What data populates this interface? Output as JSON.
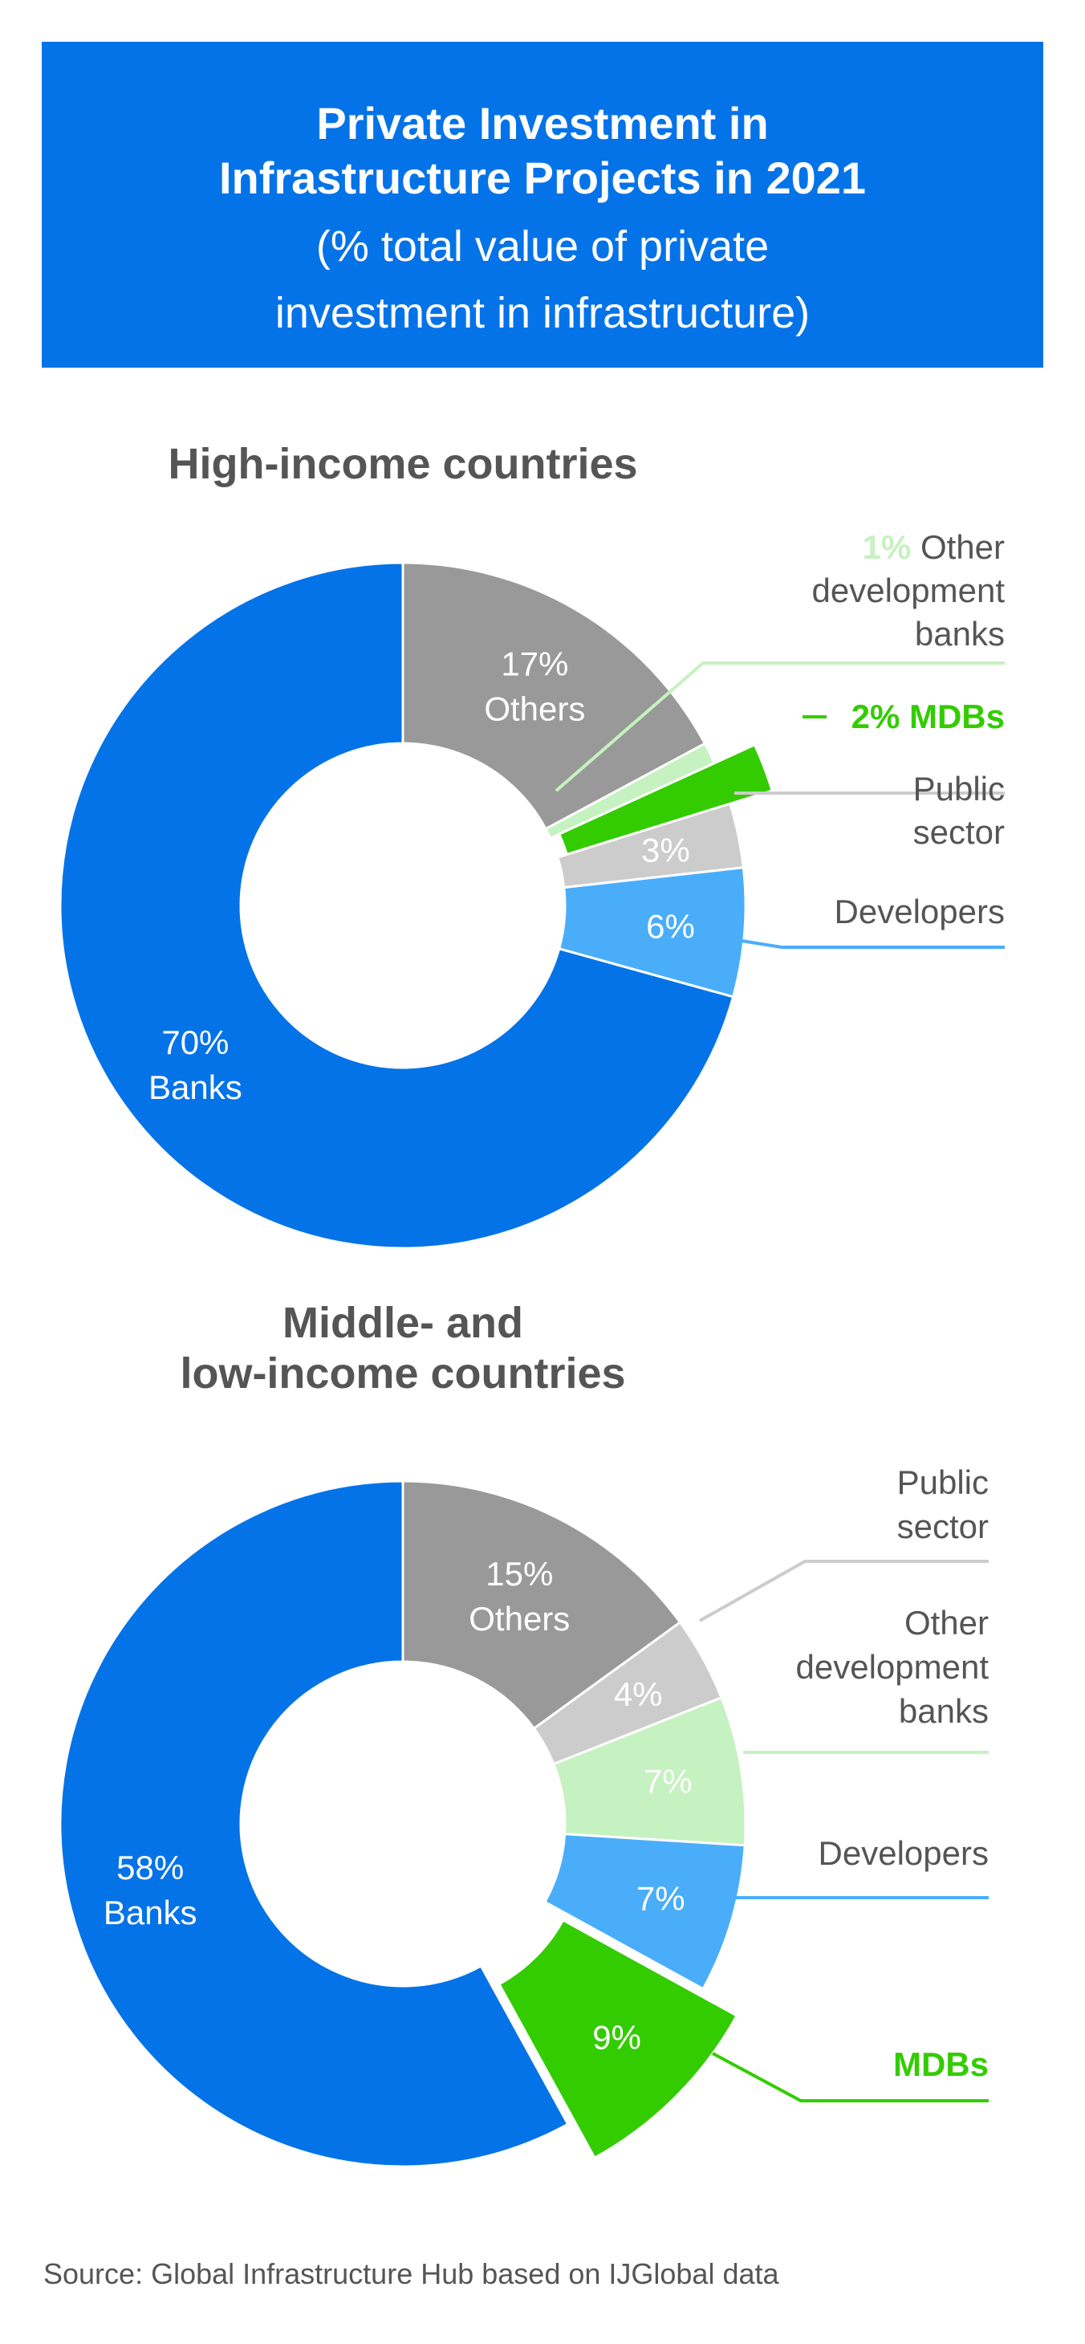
{
  "header": {
    "title_line1": "Private Investment in",
    "title_line2": "Infrastructure Projects in 2021",
    "subtitle_line1": "(% total value of private",
    "subtitle_line2": "investment in infrastructure)"
  },
  "colors": {
    "banner": "#0573e8",
    "banks": "#0573e8",
    "developers": "#4aadf9",
    "public_sector": "#cccccc",
    "mdbs": "#33cc00",
    "other_dev_banks": "#c6f1c0",
    "others": "#999999",
    "heading_text": "#555555"
  },
  "chart_data": [
    {
      "type": "pie",
      "subtype": "donut",
      "title": "High-income countries",
      "slices": [
        {
          "key": "others",
          "value": 17,
          "label_pct": "17%",
          "label_name": "Others"
        },
        {
          "key": "other_dev_banks",
          "value": 1,
          "label_pct": "1%",
          "label_name": "Other development banks",
          "label_lines": [
            "Other",
            "development",
            "banks"
          ]
        },
        {
          "key": "mdbs",
          "value": 2,
          "label_pct": "2%",
          "label_name": "MDBs",
          "exploded": true
        },
        {
          "key": "public_sector",
          "value": 3,
          "label_pct": "3%",
          "label_name": "Public sector",
          "label_lines": [
            "Public",
            "sector"
          ]
        },
        {
          "key": "developers",
          "value": 6,
          "label_pct": "6%",
          "label_name": "Developers"
        },
        {
          "key": "banks",
          "value": 70,
          "label_pct": "70%",
          "label_name": "Banks"
        }
      ]
    },
    {
      "type": "pie",
      "subtype": "donut",
      "title": "Middle- and low-income countries",
      "title_lines": [
        "Middle- and",
        "low-income countries"
      ],
      "slices": [
        {
          "key": "others",
          "value": 15,
          "label_pct": "15%",
          "label_name": "Others"
        },
        {
          "key": "public_sector",
          "value": 4,
          "label_pct": "4%",
          "label_name": "Public sector",
          "label_lines": [
            "Public",
            "sector"
          ]
        },
        {
          "key": "other_dev_banks",
          "value": 7,
          "label_pct": "7%",
          "label_name": "Other development banks",
          "label_lines": [
            "Other",
            "development",
            "banks"
          ]
        },
        {
          "key": "developers",
          "value": 7,
          "label_pct": "7%",
          "label_name": "Developers"
        },
        {
          "key": "mdbs",
          "value": 9,
          "label_pct": "9%",
          "label_name": "MDBs",
          "exploded": true
        },
        {
          "key": "banks",
          "value": 58,
          "label_pct": "58%",
          "label_name": "Banks"
        }
      ]
    }
  ],
  "source": "Source: Global Infrastructure Hub based on IJGlobal data"
}
